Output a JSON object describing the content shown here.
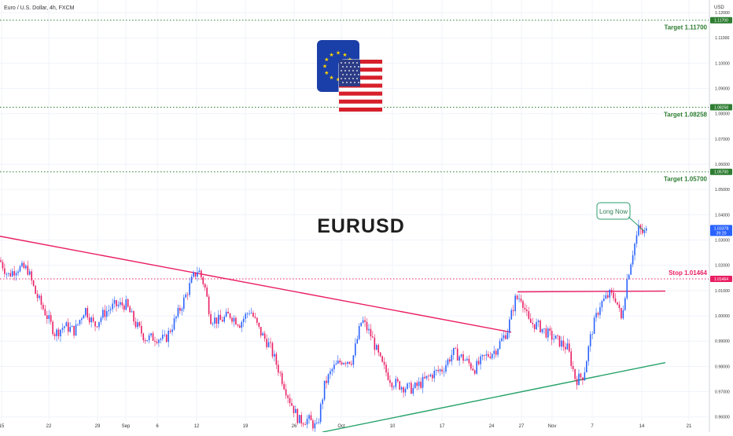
{
  "header": {
    "title": "Euro / U.S. Dollar, 4h, FXCM"
  },
  "axis": {
    "currency": "USD"
  },
  "colors": {
    "up": "#2962ff",
    "down": "#e91e63",
    "target": "#2e7d32",
    "stop": "#e91e63",
    "resistance": "#e91e63",
    "support": "#26a269",
    "grid": "#f0f3fa",
    "axis_text": "#333333"
  },
  "chart_data": {
    "type": "candlestick",
    "instrument": "EURUSD",
    "ylim": [
      0.954,
      1.125
    ],
    "yticks": [
      {
        "value": 1.12,
        "label": "1.12000"
      },
      {
        "value": 1.11,
        "label": "1.11000"
      },
      {
        "value": 1.1,
        "label": "1.10000"
      },
      {
        "value": 1.09,
        "label": "1.09000"
      },
      {
        "value": 1.08,
        "label": "1.08000"
      },
      {
        "value": 1.07,
        "label": "1.07000"
      },
      {
        "value": 1.06,
        "label": "1.06000"
      },
      {
        "value": 1.05,
        "label": "1.05000"
      },
      {
        "value": 1.04,
        "label": "1.04000"
      },
      {
        "value": 1.03,
        "label": "1.03000"
      },
      {
        "value": 1.02,
        "label": "1.02000"
      },
      {
        "value": 1.01,
        "label": "1.01000"
      },
      {
        "value": 1.0,
        "label": "1.00000"
      },
      {
        "value": 0.99,
        "label": "0.99000"
      },
      {
        "value": 0.98,
        "label": "0.98000"
      },
      {
        "value": 0.97,
        "label": "0.97000"
      },
      {
        "value": 0.96,
        "label": "0.96000"
      }
    ],
    "xticks": [
      "15",
      "22",
      "29",
      "Sep",
      "6",
      "12",
      "19",
      "26",
      "Oct",
      "10",
      "17",
      "24",
      "27",
      "Nov",
      "7",
      "14",
      "21"
    ],
    "levels": [
      {
        "name": "Target 1.11700",
        "value": 1.117,
        "badge": "1.11700",
        "kind": "target"
      },
      {
        "name": "Target 1.08258",
        "value": 1.08258,
        "badge": "1.08258",
        "kind": "target"
      },
      {
        "name": "Target 1.05700",
        "value": 1.057,
        "badge": "1.05700",
        "kind": "target"
      },
      {
        "name": "Stop 1.01464",
        "value": 1.01464,
        "badge": "1.01464",
        "kind": "stop"
      }
    ],
    "current_price": {
      "label": "1.03378",
      "countdown": "39:20",
      "value": 1.03378
    },
    "annotation": "Long Now",
    "center_label": "EURUSD",
    "trendlines": [
      {
        "name": "descending-trendline",
        "points": [
          [
            0,
            1.0315
          ],
          [
            650,
            0.9935
          ]
        ]
      },
      {
        "name": "resistance-line",
        "points": [
          [
            658,
            1.0095
          ],
          [
            846,
            1.0098
          ]
        ]
      },
      {
        "name": "ascending-support",
        "points": [
          [
            410,
            0.954
          ],
          [
            846,
            0.9815
          ]
        ]
      }
    ],
    "path": [
      [
        0,
        1.022
      ],
      [
        10,
        1.016
      ],
      [
        22,
        1.019
      ],
      [
        35,
        1.0185
      ],
      [
        45,
        1.009
      ],
      [
        58,
        1.001
      ],
      [
        70,
        0.993
      ],
      [
        82,
        0.996
      ],
      [
        95,
        0.994
      ],
      [
        108,
        1.003
      ],
      [
        120,
        0.996
      ],
      [
        132,
        1.001
      ],
      [
        145,
        1.004
      ],
      [
        160,
        1.0045
      ],
      [
        172,
        0.997
      ],
      [
        185,
        0.991
      ],
      [
        198,
        0.9915
      ],
      [
        210,
        0.9905
      ],
      [
        222,
        0.998
      ],
      [
        235,
        1.007
      ],
      [
        245,
        1.015
      ],
      [
        252,
        1.0185
      ],
      [
        260,
        1.012
      ],
      [
        268,
        0.999
      ],
      [
        280,
        0.998
      ],
      [
        292,
        1.0005
      ],
      [
        305,
        0.997
      ],
      [
        318,
        1.0025
      ],
      [
        330,
        0.994
      ],
      [
        343,
        0.988
      ],
      [
        355,
        0.978
      ],
      [
        368,
        0.967
      ],
      [
        380,
        0.9585
      ],
      [
        392,
        0.959
      ],
      [
        403,
        0.9555
      ],
      [
        413,
        0.973
      ],
      [
        423,
        0.979
      ],
      [
        435,
        0.9825
      ],
      [
        448,
        0.9825
      ],
      [
        460,
        0.9985
      ],
      [
        472,
        0.992
      ],
      [
        485,
        0.981
      ],
      [
        498,
        0.974
      ],
      [
        512,
        0.972
      ],
      [
        525,
        0.971
      ],
      [
        538,
        0.974
      ],
      [
        550,
        0.977
      ],
      [
        563,
        0.979
      ],
      [
        576,
        0.9855
      ],
      [
        590,
        0.983
      ],
      [
        603,
        0.979
      ],
      [
        616,
        0.9835
      ],
      [
        630,
        0.9865
      ],
      [
        645,
        0.994
      ],
      [
        655,
        1.0065
      ],
      [
        663,
        1.0075
      ],
      [
        672,
        0.9975
      ],
      [
        685,
        0.996
      ],
      [
        698,
        0.9925
      ],
      [
        712,
        0.9895
      ],
      [
        722,
        0.987
      ],
      [
        732,
        0.9745
      ],
      [
        742,
        0.9765
      ],
      [
        752,
        0.9935
      ],
      [
        763,
        1.0045
      ],
      [
        775,
        1.0085
      ],
      [
        783,
        1.007
      ],
      [
        790,
        0.9985
      ],
      [
        797,
        1.014
      ],
      [
        805,
        1.026
      ],
      [
        812,
        1.0345
      ],
      [
        818,
        1.0325
      ],
      [
        823,
        1.0338
      ]
    ]
  }
}
